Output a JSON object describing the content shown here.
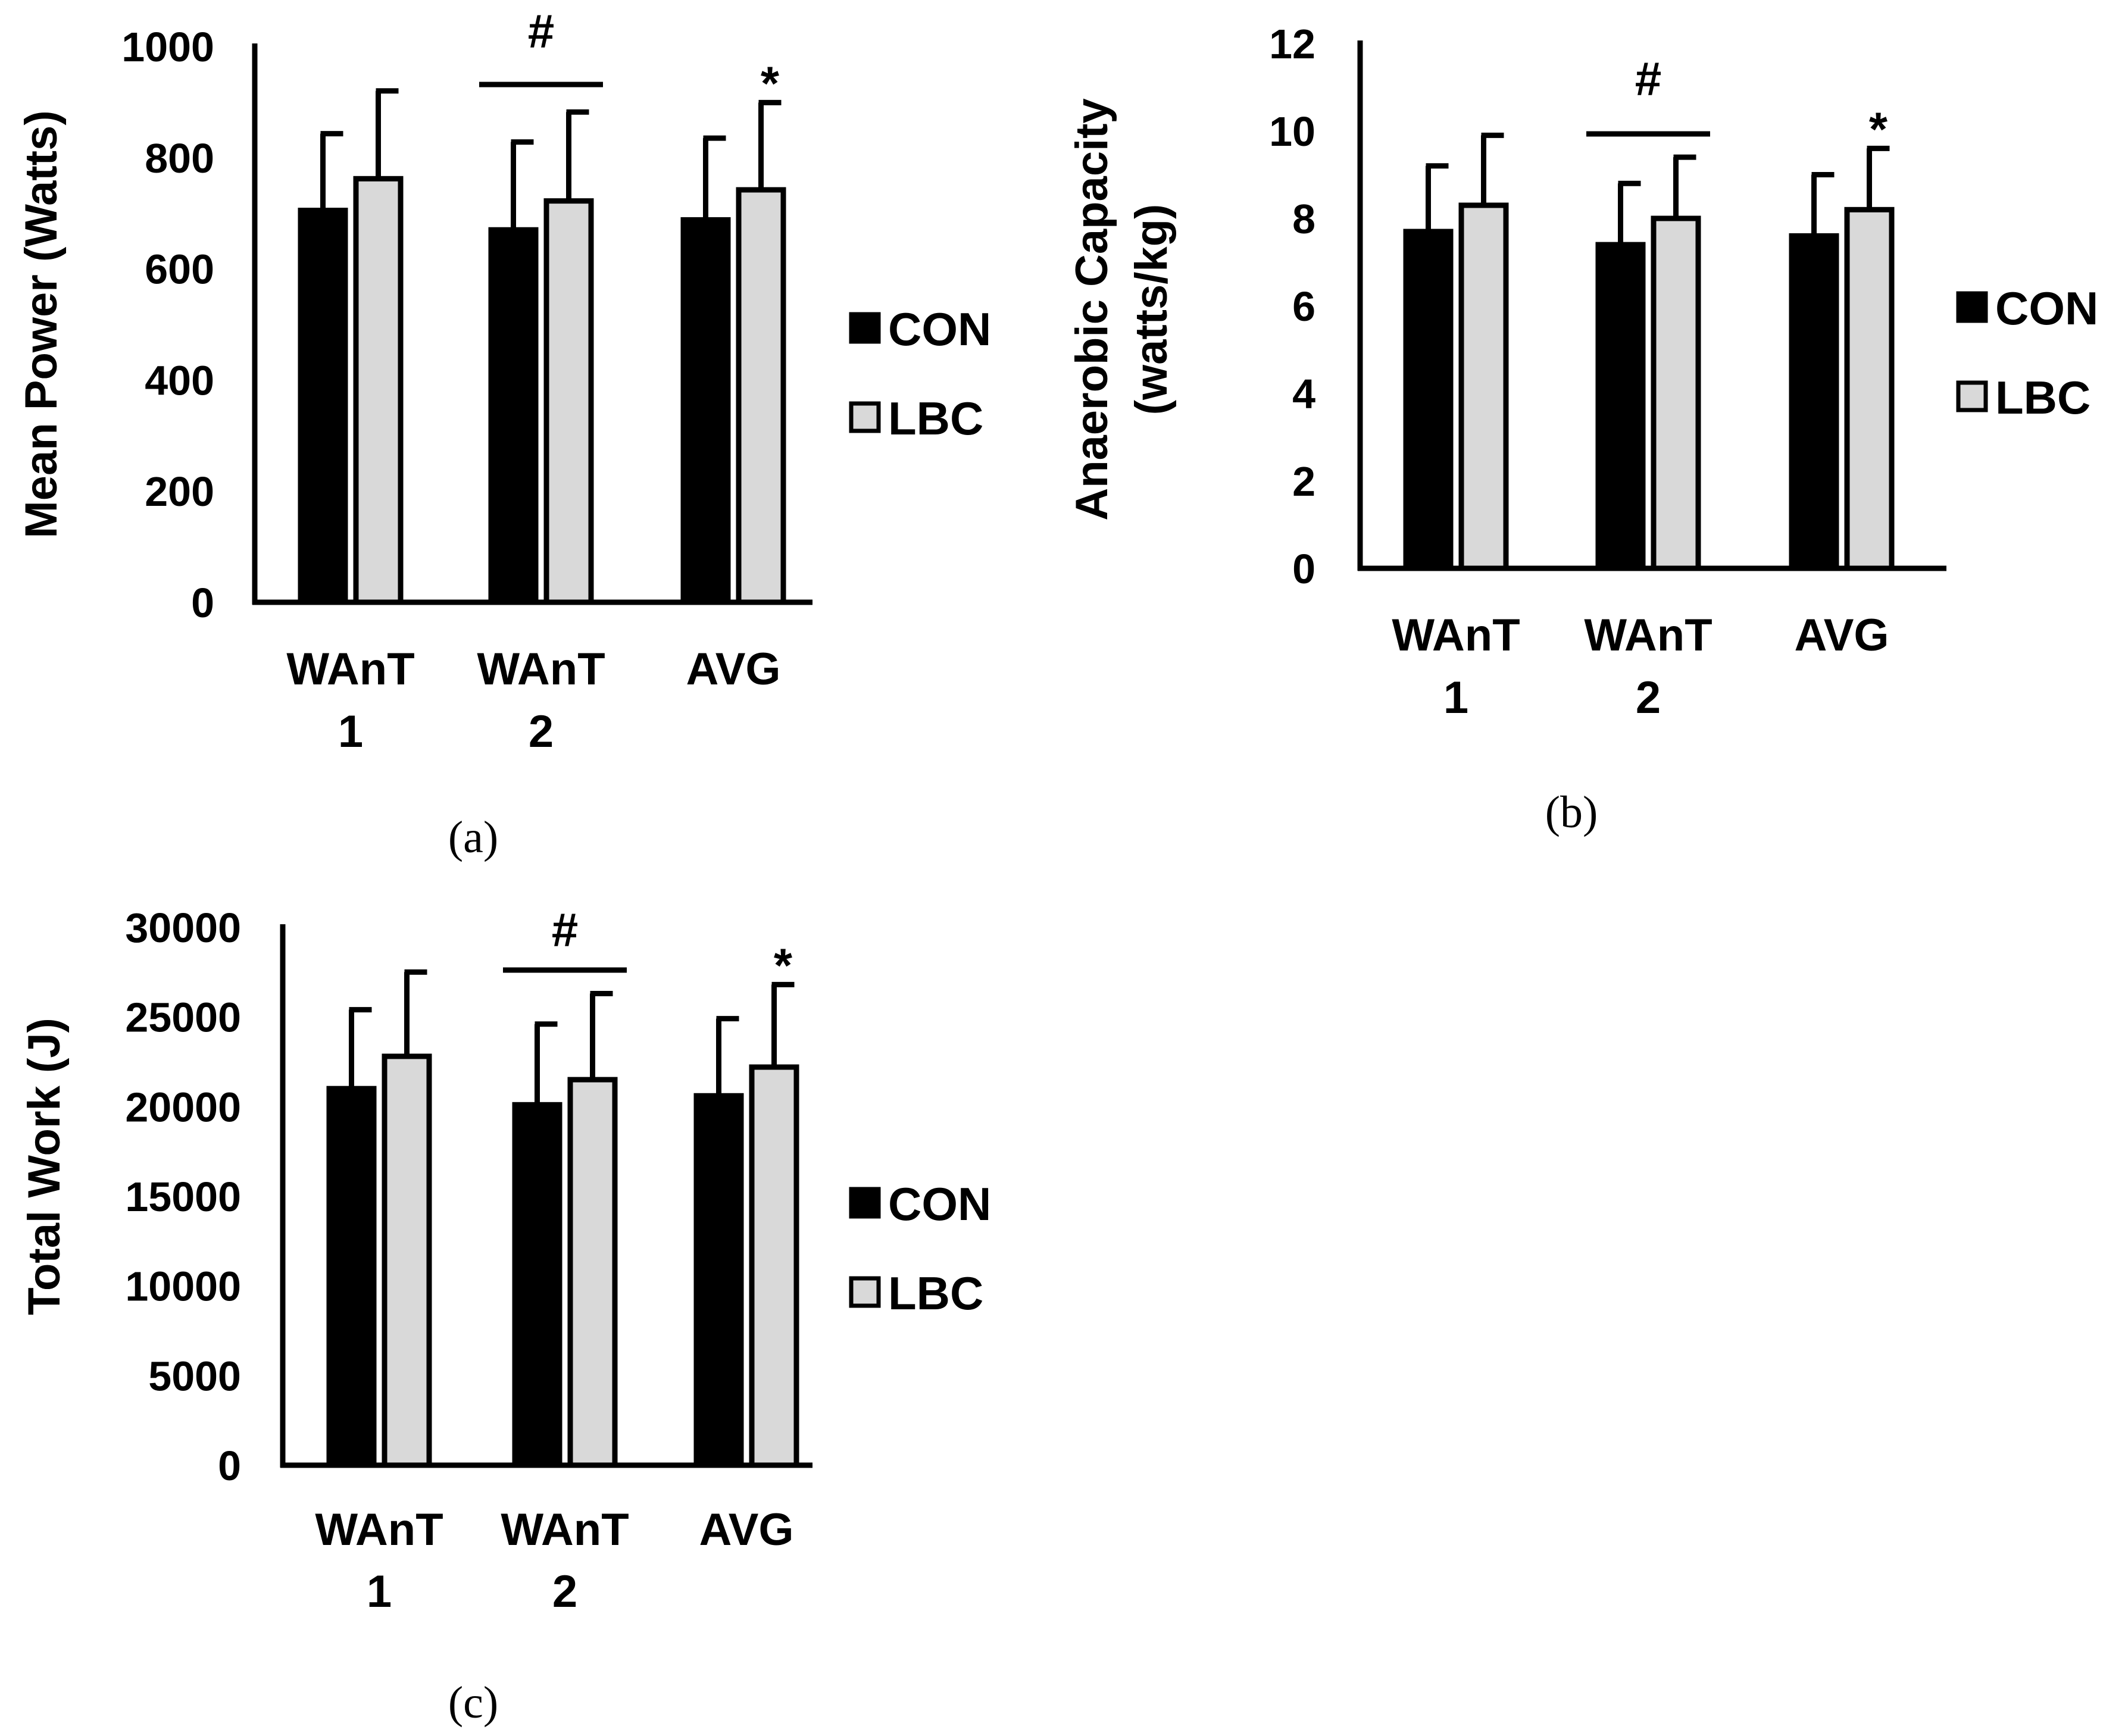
{
  "colors": {
    "CON": "#000000",
    "LBC": "#d9d9d9",
    "axis": "#000000",
    "stroke": "#000000"
  },
  "chart_data": [
    {
      "id": "a",
      "type": "bar",
      "panel_label": "(a)",
      "ylabel": "Mean Power (Watts)",
      "ylim": [
        0,
        1000
      ],
      "yticks": [
        0,
        200,
        400,
        600,
        800,
        1000
      ],
      "yticks_text": [
        "0",
        "200",
        "400",
        "600",
        "800",
        "1000"
      ],
      "categories": [
        [
          "WAnT",
          "1"
        ],
        [
          "WAnT",
          "2"
        ],
        [
          "AVG"
        ]
      ],
      "series": [
        {
          "name": "CON",
          "values": [
            705,
            670,
            688
          ],
          "errors": [
            138,
            158,
            147
          ]
        },
        {
          "name": "LBC",
          "values": [
            762,
            722,
            742
          ],
          "errors": [
            158,
            160,
            157
          ]
        }
      ],
      "legend": [
        "CON",
        "LBC"
      ],
      "annotations": [
        {
          "text": "#",
          "category_span": [
            1,
            1
          ],
          "type": "bracket"
        },
        {
          "text": "*",
          "category": 2,
          "series": 1,
          "type": "star"
        }
      ]
    },
    {
      "id": "b",
      "type": "bar",
      "panel_label": "(b)",
      "ylabel": [
        "Anaerobic Capacity",
        "(watts/kg)"
      ],
      "ylim": [
        0,
        12
      ],
      "yticks": [
        0,
        2,
        4,
        6,
        8,
        10,
        12
      ],
      "yticks_text": [
        "0",
        "2",
        "4",
        "6",
        "8",
        "10",
        "12"
      ],
      "categories": [
        [
          "WAnT",
          "1"
        ],
        [
          "WAnT",
          "2"
        ],
        [
          "AVG"
        ]
      ],
      "series": [
        {
          "name": "CON",
          "values": [
            7.7,
            7.4,
            7.6
          ],
          "errors": [
            1.5,
            1.4,
            1.4
          ]
        },
        {
          "name": "LBC",
          "values": [
            8.3,
            8.0,
            8.2
          ],
          "errors": [
            1.6,
            1.4,
            1.4
          ]
        }
      ],
      "legend": [
        "CON",
        "LBC"
      ],
      "annotations": [
        {
          "text": "#",
          "category_span": [
            1,
            1
          ],
          "type": "bracket"
        },
        {
          "text": "*",
          "category": 2,
          "series": 1,
          "type": "star"
        }
      ]
    },
    {
      "id": "c",
      "type": "bar",
      "panel_label": "(c)",
      "ylabel": "Total Work (J)",
      "ylim": [
        0,
        30000
      ],
      "yticks": [
        0,
        5000,
        10000,
        15000,
        20000,
        25000,
        30000
      ],
      "yticks_text": [
        "0",
        "5000",
        "10000",
        "15000",
        "20000",
        "25000",
        "30000"
      ],
      "categories": [
        [
          "WAnT",
          "1"
        ],
        [
          "WAnT",
          "2"
        ],
        [
          "AVG"
        ]
      ],
      "series": [
        {
          "name": "CON",
          "values": [
            21000,
            20100,
            20600
          ],
          "errors": [
            4400,
            4500,
            4300
          ]
        },
        {
          "name": "LBC",
          "values": [
            22800,
            21500,
            22200
          ],
          "errors": [
            4700,
            4800,
            4600
          ]
        }
      ],
      "legend": [
        "CON",
        "LBC"
      ],
      "annotations": [
        {
          "text": "#",
          "category_span": [
            1,
            1
          ],
          "type": "bracket"
        },
        {
          "text": "*",
          "category": 2,
          "series": 1,
          "type": "star"
        }
      ]
    }
  ]
}
